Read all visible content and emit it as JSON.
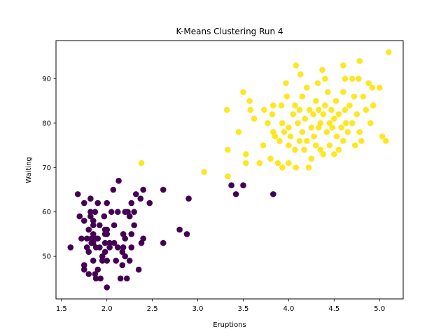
{
  "chart_data": {
    "type": "scatter",
    "title": "K-Means Clustering Run 4",
    "xlabel": "Eruptions",
    "ylabel": "Waiting",
    "xlim": [
      1.44,
      5.26
    ],
    "ylim": [
      40.4,
      98.6
    ],
    "xticks": [
      1.5,
      2.0,
      2.5,
      3.0,
      3.5,
      4.0,
      4.5,
      5.0
    ],
    "xtick_labels": [
      "1.5",
      "2.0",
      "2.5",
      "3.0",
      "3.5",
      "4.0",
      "4.5",
      "5.0"
    ],
    "yticks": [
      50,
      60,
      70,
      80,
      90
    ],
    "ytick_labels": [
      "50",
      "60",
      "70",
      "80",
      "90"
    ],
    "grid": false,
    "series": [
      {
        "color": "#440154",
        "points": [
          [
            1.6,
            52
          ],
          [
            1.68,
            64
          ],
          [
            1.7,
            59
          ],
          [
            1.72,
            54
          ],
          [
            1.75,
            62
          ],
          [
            1.75,
            58
          ],
          [
            1.75,
            48
          ],
          [
            1.75,
            47
          ],
          [
            1.78,
            54
          ],
          [
            1.78,
            52
          ],
          [
            1.8,
            56
          ],
          [
            1.8,
            51
          ],
          [
            1.8,
            46
          ],
          [
            1.82,
            63
          ],
          [
            1.82,
            60
          ],
          [
            1.82,
            59
          ],
          [
            1.83,
            54
          ],
          [
            1.83,
            53
          ],
          [
            1.85,
            58
          ],
          [
            1.85,
            57
          ],
          [
            1.85,
            55
          ],
          [
            1.85,
            53
          ],
          [
            1.85,
            49
          ],
          [
            1.87,
            60
          ],
          [
            1.87,
            46
          ],
          [
            1.88,
            54
          ],
          [
            1.88,
            52
          ],
          [
            1.88,
            45
          ],
          [
            1.9,
            62
          ],
          [
            1.9,
            54
          ],
          [
            1.9,
            47
          ],
          [
            1.92,
            57
          ],
          [
            1.92,
            52
          ],
          [
            1.93,
            45
          ],
          [
            1.95,
            50
          ],
          [
            1.95,
            49
          ],
          [
            1.97,
            59
          ],
          [
            1.98,
            56
          ],
          [
            1.98,
            55
          ],
          [
            1.98,
            53
          ],
          [
            1.98,
            51
          ],
          [
            2.0,
            62
          ],
          [
            2.0,
            56
          ],
          [
            2.0,
            55
          ],
          [
            2.0,
            49
          ],
          [
            2.0,
            43
          ],
          [
            2.03,
            53
          ],
          [
            2.03,
            52
          ],
          [
            2.05,
            60
          ],
          [
            2.07,
            65
          ],
          [
            2.08,
            57
          ],
          [
            2.08,
            53
          ],
          [
            2.1,
            49
          ],
          [
            2.12,
            60
          ],
          [
            2.12,
            52
          ],
          [
            2.13,
            67
          ],
          [
            2.15,
            45
          ],
          [
            2.17,
            51
          ],
          [
            2.17,
            48
          ],
          [
            2.18,
            55
          ],
          [
            2.18,
            52
          ],
          [
            2.2,
            60
          ],
          [
            2.2,
            54
          ],
          [
            2.2,
            50
          ],
          [
            2.22,
            45
          ],
          [
            2.23,
            60
          ],
          [
            2.25,
            59
          ],
          [
            2.25,
            49
          ],
          [
            2.27,
            62
          ],
          [
            2.27,
            55
          ],
          [
            2.27,
            52
          ],
          [
            2.3,
            60
          ],
          [
            2.3,
            57
          ],
          [
            2.32,
            64
          ],
          [
            2.35,
            47
          ],
          [
            2.37,
            63
          ],
          [
            2.38,
            53
          ],
          [
            2.4,
            65
          ],
          [
            2.4,
            54
          ],
          [
            2.47,
            62
          ],
          [
            2.62,
            65
          ],
          [
            2.62,
            53
          ],
          [
            2.8,
            56
          ],
          [
            2.88,
            55
          ],
          [
            2.9,
            63
          ],
          [
            3.37,
            66
          ],
          [
            3.42,
            64
          ],
          [
            3.5,
            66
          ],
          [
            3.83,
            64
          ]
        ]
      },
      {
        "color": "#fde725",
        "points": [
          [
            2.38,
            71
          ],
          [
            3.07,
            69
          ],
          [
            3.32,
            83
          ],
          [
            3.33,
            74
          ],
          [
            3.33,
            68
          ],
          [
            3.45,
            78
          ],
          [
            3.5,
            87
          ],
          [
            3.53,
            73
          ],
          [
            3.53,
            71
          ],
          [
            3.57,
            85
          ],
          [
            3.58,
            83
          ],
          [
            3.62,
            81
          ],
          [
            3.68,
            71
          ],
          [
            3.72,
            75
          ],
          [
            3.73,
            83
          ],
          [
            3.77,
            80
          ],
          [
            3.8,
            72
          ],
          [
            3.82,
            82
          ],
          [
            3.83,
            84
          ],
          [
            3.83,
            78
          ],
          [
            3.85,
            77
          ],
          [
            3.88,
            71
          ],
          [
            3.9,
            76
          ],
          [
            3.92,
            84
          ],
          [
            3.93,
            80
          ],
          [
            3.93,
            70
          ],
          [
            3.95,
            78
          ],
          [
            3.97,
            89
          ],
          [
            3.98,
            86
          ],
          [
            4.0,
            75
          ],
          [
            4.0,
            71
          ],
          [
            4.0,
            79
          ],
          [
            4.02,
            77
          ],
          [
            4.05,
            82
          ],
          [
            4.07,
            84
          ],
          [
            4.07,
            74
          ],
          [
            4.08,
            93
          ],
          [
            4.08,
            70
          ],
          [
            4.1,
            80
          ],
          [
            4.12,
            83
          ],
          [
            4.12,
            76
          ],
          [
            4.13,
            91
          ],
          [
            4.15,
            86
          ],
          [
            4.15,
            78
          ],
          [
            4.17,
            74
          ],
          [
            4.18,
            81
          ],
          [
            4.2,
            88
          ],
          [
            4.2,
            76
          ],
          [
            4.22,
            70
          ],
          [
            4.23,
            83
          ],
          [
            4.25,
            79
          ],
          [
            4.25,
            72
          ],
          [
            4.27,
            82
          ],
          [
            4.28,
            77
          ],
          [
            4.3,
            85
          ],
          [
            4.3,
            75
          ],
          [
            4.32,
            89
          ],
          [
            4.33,
            83
          ],
          [
            4.33,
            79
          ],
          [
            4.35,
            80
          ],
          [
            4.35,
            74
          ],
          [
            4.37,
            92
          ],
          [
            4.38,
            82
          ],
          [
            4.38,
            73
          ],
          [
            4.4,
            90
          ],
          [
            4.4,
            84
          ],
          [
            4.42,
            78
          ],
          [
            4.43,
            87
          ],
          [
            4.45,
            80
          ],
          [
            4.45,
            75
          ],
          [
            4.47,
            83
          ],
          [
            4.48,
            79
          ],
          [
            4.5,
            81
          ],
          [
            4.5,
            73
          ],
          [
            4.52,
            85
          ],
          [
            4.53,
            77
          ],
          [
            4.55,
            82
          ],
          [
            4.55,
            74
          ],
          [
            4.58,
            79
          ],
          [
            4.6,
            93
          ],
          [
            4.6,
            87
          ],
          [
            4.6,
            76
          ],
          [
            4.62,
            90
          ],
          [
            4.62,
            83
          ],
          [
            4.63,
            80
          ],
          [
            4.65,
            78
          ],
          [
            4.67,
            84
          ],
          [
            4.7,
            90
          ],
          [
            4.7,
            80
          ],
          [
            4.72,
            86
          ],
          [
            4.73,
            75
          ],
          [
            4.75,
            82
          ],
          [
            4.77,
            90
          ],
          [
            4.78,
            94
          ],
          [
            4.78,
            78
          ],
          [
            4.8,
            76
          ],
          [
            4.82,
            86
          ],
          [
            4.85,
            83
          ],
          [
            4.88,
            89
          ],
          [
            4.9,
            80
          ],
          [
            4.92,
            88
          ],
          [
            4.93,
            84
          ],
          [
            5.0,
            88
          ],
          [
            5.03,
            77
          ],
          [
            5.07,
            76
          ],
          [
            5.1,
            96
          ]
        ]
      }
    ]
  }
}
